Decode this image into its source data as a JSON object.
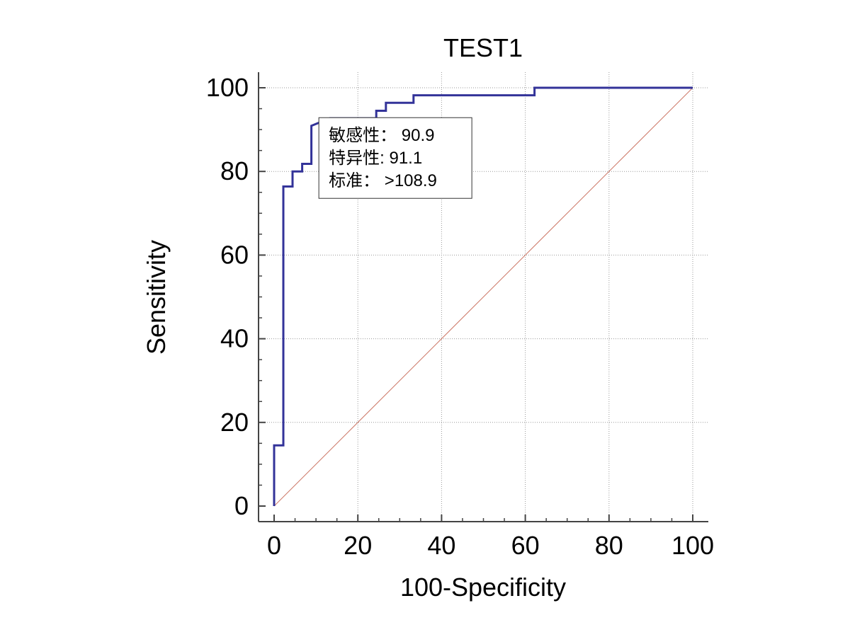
{
  "chart_data": {
    "type": "line",
    "title": "TEST1",
    "xlabel": "100-Specificity",
    "ylabel": "Sensitivity",
    "xlim": [
      0,
      100
    ],
    "ylim": [
      0,
      100
    ],
    "x_ticks": [
      0,
      20,
      40,
      60,
      80,
      100
    ],
    "y_ticks": [
      0,
      20,
      40,
      60,
      80,
      100
    ],
    "grid": true,
    "series": [
      {
        "color": "#333399",
        "x": [
          0,
          0,
          2.2,
          2.2,
          4.4,
          4.4,
          6.7,
          6.7,
          8.9,
          8.9,
          13.3,
          24.4,
          24.4,
          26.7,
          26.7,
          33.3,
          33.3,
          62.2,
          62.2,
          100
        ],
        "y": [
          0,
          14.5,
          14.5,
          76.4,
          76.4,
          80.0,
          80.0,
          81.8,
          81.8,
          90.9,
          92.7,
          92.7,
          94.5,
          94.5,
          96.4,
          96.4,
          98.2,
          98.2,
          100,
          100
        ]
      },
      {
        "color": "#cc7766",
        "x": [
          0,
          100
        ],
        "y": [
          0,
          100
        ]
      }
    ],
    "annotation": {
      "lines": [
        "敏感性：  90.9",
        "特异性: 91.1",
        "标准：  >108.9"
      ],
      "anchor": [
        9.5,
        91.5
      ]
    }
  }
}
